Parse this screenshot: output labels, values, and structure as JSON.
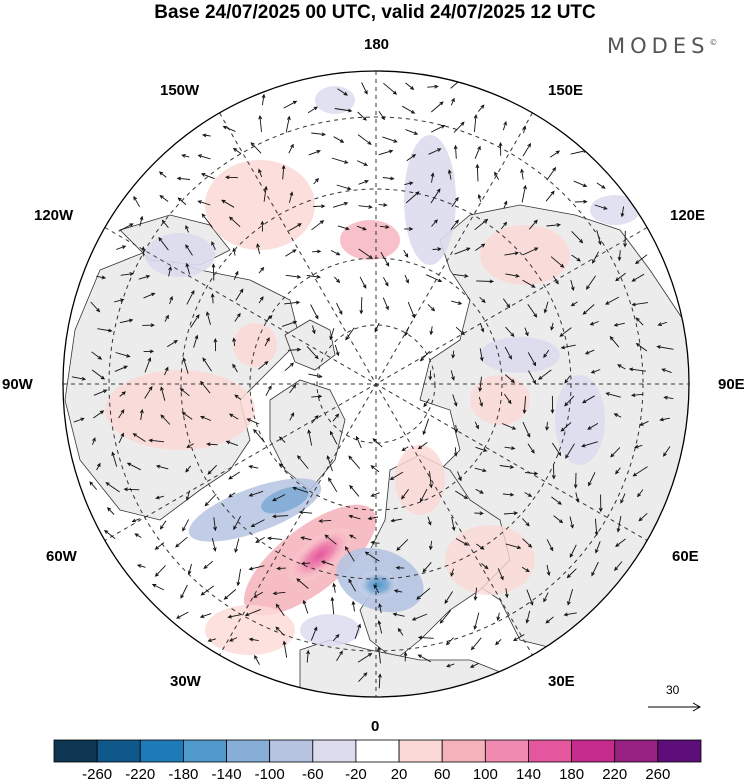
{
  "title": "Base 24/07/2025 00 UTC, valid 24/07/2025 12 UTC",
  "brand": "MODES",
  "brand_mark": "©",
  "longitude_labels": {
    "lon_180": "180",
    "lon_150e": "150E",
    "lon_120e": "120E",
    "lon_90e": "90E",
    "lon_60e": "60E",
    "lon_30e": "30E",
    "lon_0": "0",
    "lon_30w": "30W",
    "lon_60w": "60W",
    "lon_90w": "90W",
    "lon_120w": "120W",
    "lon_150w": "150W"
  },
  "reference_vector": {
    "value": "30"
  },
  "colorbar": {
    "colors": [
      "#0e3754",
      "#10578a",
      "#1f7ab8",
      "#4f9acb",
      "#86aed7",
      "#b6c4e2",
      "#dcdcee",
      "#ffffff",
      "#fbd9d6",
      "#f6b2bb",
      "#f08ab0",
      "#e4579f",
      "#c42b8c",
      "#972282",
      "#5d0e78"
    ],
    "labels": [
      "-260",
      "-220",
      "-180",
      "-140",
      "-100",
      "-60",
      "-20",
      "20",
      "60",
      "100",
      "140",
      "180",
      "220",
      "260"
    ]
  }
}
